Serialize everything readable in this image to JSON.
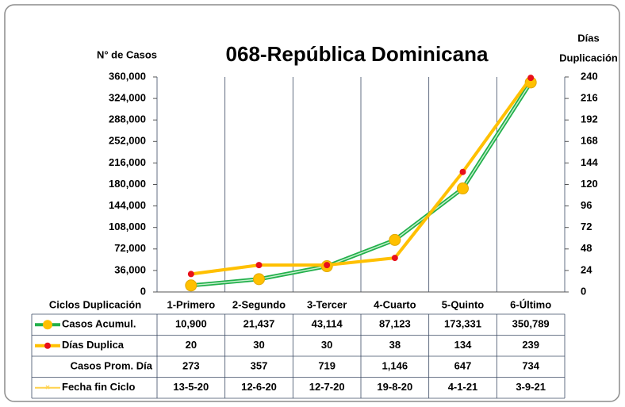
{
  "chart_data": {
    "type": "line",
    "title": "068-República Dominicana",
    "y_label": "N° de Casos",
    "y2_label": [
      "Días",
      "Duplicación"
    ],
    "table_header": "Ciclos Duplicación",
    "categories": [
      "1-Primero",
      "2-Segundo",
      "3-Tercer",
      "4-Cuarto",
      "5-Quinto",
      "6-Último"
    ],
    "ylim": [
      0,
      360000
    ],
    "yticks": [
      0,
      {
        "value": 36000,
        "label": "36,000"
      },
      {
        "value": 72000,
        "label": "72,000"
      },
      {
        "value": 108000,
        "label": "108,000"
      },
      {
        "value": 144000,
        "label": "144,000"
      },
      {
        "value": 180000,
        "label": "180,000"
      },
      {
        "value": 216000,
        "label": "216,000"
      },
      {
        "value": 252000,
        "label": "252,000"
      },
      {
        "value": 288000,
        "label": "288,000"
      },
      {
        "value": 324000,
        "label": "324,000"
      },
      {
        "value": 360000,
        "label": "360,000"
      }
    ],
    "y2lim": [
      0,
      240
    ],
    "y2ticks": [
      0,
      24,
      48,
      72,
      96,
      120,
      144,
      168,
      192,
      216,
      240
    ],
    "series": [
      {
        "name": "Casos Acumul.",
        "color": "#22b04b",
        "marker_color": "#ffc000",
        "values": [
          10900,
          21437,
          43114,
          87123,
          173331,
          350789
        ],
        "value_labels": [
          "10,900",
          "21,437",
          "43,114",
          "87,123",
          "173,331",
          "350,789"
        ]
      },
      {
        "name": "Días Duplica",
        "color": "#ffc000",
        "marker_color": "#e8101a",
        "axis": "y2",
        "values": [
          20,
          30,
          30,
          38,
          134,
          239
        ]
      },
      {
        "name": "Casos Prom. Día",
        "values": [
          273,
          357,
          719,
          1146,
          647,
          734
        ],
        "value_labels": [
          "273",
          "357",
          "719",
          "1,146",
          "647",
          "734"
        ]
      },
      {
        "name": "Fecha fin Ciclo",
        "color": "#ffd24d",
        "values": [
          "13-5-20",
          "12-6-20",
          "12-7-20",
          "19-8-20",
          "4-1-21",
          "3-9-21"
        ]
      }
    ]
  }
}
